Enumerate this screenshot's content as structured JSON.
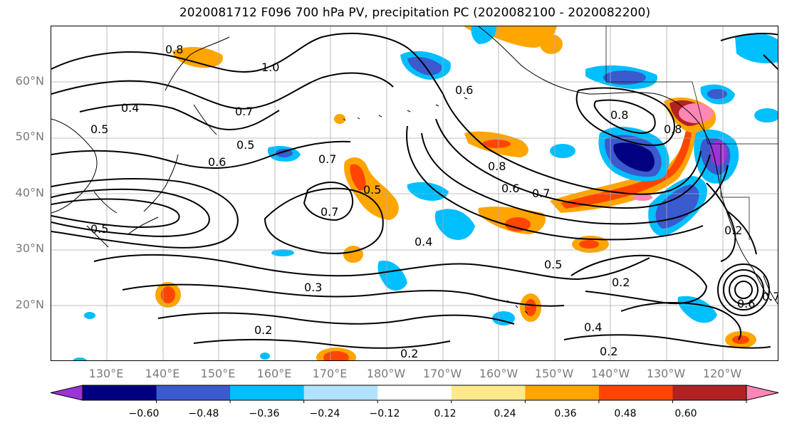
{
  "title": "2020081712 F096 700 hPa PV, precipitation PC (2020082100 - 2020082200)",
  "map": {
    "lat_labels": [
      "60°N",
      "50°N",
      "40°N",
      "30°N",
      "20°N"
    ],
    "lon_labels": [
      "130°E",
      "140°E",
      "150°E",
      "160°E",
      "170°E",
      "180°W",
      "170°W",
      "160°W",
      "150°W",
      "140°W",
      "130°W",
      "120°W"
    ],
    "contour_labels": [
      "0.8",
      "1.0",
      "0.5",
      "0.4",
      "0.5",
      "0.7",
      "0.5",
      "0.6",
      "0.7",
      "0.8",
      "0.8",
      "0.6",
      "0.7",
      "0.7",
      "0.5",
      "0.4",
      "0.5",
      "0.2",
      "0.3",
      "0.2",
      "0.4",
      "0.2",
      "0.2",
      "0.2",
      "0.8",
      "0.6",
      "0.6",
      "0.7"
    ]
  },
  "colorbar": {
    "colors": [
      "#9b34d6",
      "#000080",
      "#3a5acd",
      "#00bfff",
      "#b0e2ff",
      "#ffffff",
      "#ffe98a",
      "#ffa500",
      "#ff4500",
      "#b22222",
      "#ff86b5"
    ],
    "tick_labels": [
      "−0.60",
      "−0.48",
      "−0.36",
      "−0.24",
      "−0.12",
      "0.12",
      "0.24",
      "0.36",
      "0.48",
      "0.60"
    ]
  }
}
